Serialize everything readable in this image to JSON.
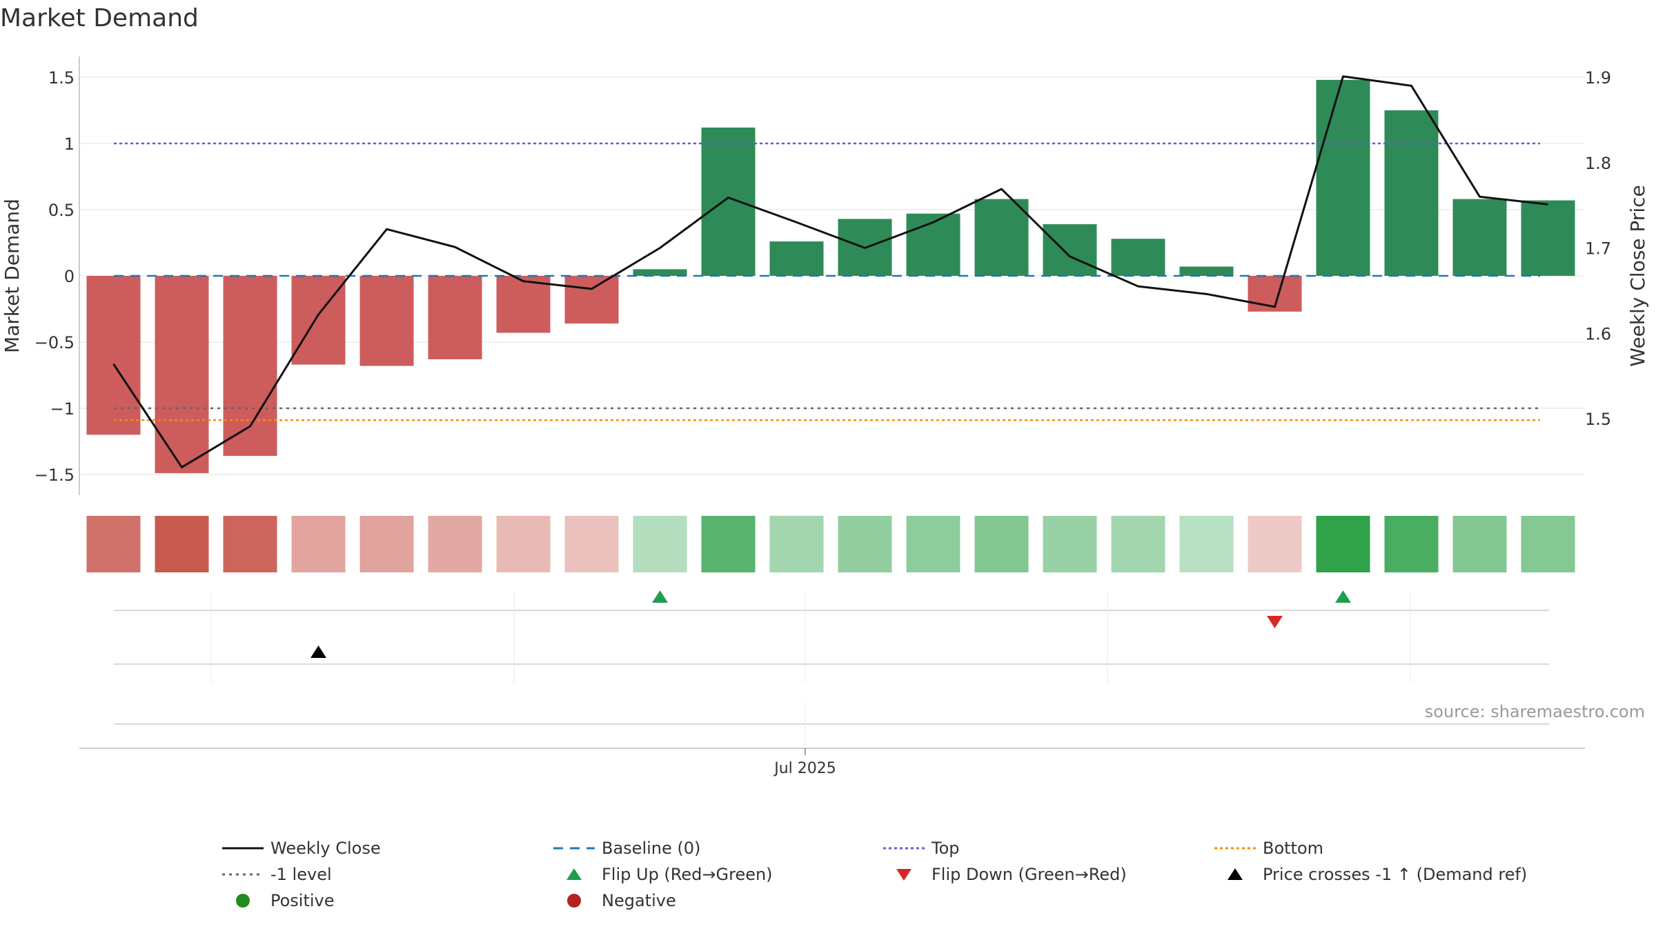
{
  "title": "Market Demand",
  "source": "source: sharemaestro.com",
  "colors": {
    "positive": "#2e8b57",
    "negative": "#cd5c5c",
    "price_line": "#111111",
    "baseline": "#1f77b4",
    "top": "#6a5acd",
    "bottom": "#ff8c00",
    "minus_one": "#666666",
    "flip_up": "#1e9e50",
    "flip_down": "#d62728",
    "cross": "#000000",
    "legend_positive": "#228b22",
    "legend_negative": "#b22222"
  },
  "chart_data": {
    "type": "bar",
    "ylabel": "Market Demand",
    "y2label": "Weekly Close Price",
    "ylim": [
      -1.65,
      1.65
    ],
    "y2lim": [
      1.4216,
      1.9216
    ],
    "yticks": [
      "1.5",
      "1",
      "0.5",
      "0",
      "−0.5",
      "−1",
      "−1.5"
    ],
    "ytick_values": [
      1.5,
      1,
      0.5,
      0,
      -0.5,
      -1,
      -1.5
    ],
    "y2ticks": [
      "1.9",
      "1.8",
      "1.7",
      "1.6",
      "1.5"
    ],
    "y2tick_values": [
      1.9,
      1.8,
      1.7,
      1.6,
      1.5
    ],
    "x_tick_label": "Jul 2025",
    "x_tick_index": 10.5,
    "demand": [
      -1.2,
      -1.49,
      -1.36,
      -0.67,
      -0.68,
      -0.63,
      -0.43,
      -0.36,
      0.05,
      1.12,
      0.26,
      0.43,
      0.47,
      0.58,
      0.39,
      0.28,
      0.07,
      -0.27,
      1.48,
      1.25,
      0.58,
      0.57
    ],
    "close": [
      1.564,
      1.443,
      1.491,
      1.622,
      1.722,
      1.701,
      1.661,
      1.652,
      1.7,
      1.759,
      1.73,
      1.7,
      1.73,
      1.769,
      1.69,
      1.655,
      1.646,
      1.631,
      1.901,
      1.89,
      1.76,
      1.751
    ],
    "heat_intensity": [
      0.82,
      1.0,
      0.91,
      0.45,
      0.46,
      0.42,
      0.29,
      0.24,
      0.22,
      0.76,
      0.32,
      0.42,
      0.45,
      0.51,
      0.38,
      0.32,
      0.2,
      0.18,
      1.0,
      0.84,
      0.51,
      0.5
    ],
    "reference_lines": {
      "baseline": 0,
      "top": 1.0,
      "bottom": -1.09,
      "minus_one": -1.0
    },
    "flip_up_indices": [
      8,
      18
    ],
    "flip_down_indices": [
      17
    ],
    "price_cross_indices": [
      3
    ]
  },
  "legend": [
    {
      "label": "Weekly Close",
      "symbol": "solid-line"
    },
    {
      "label": "Baseline (0)",
      "symbol": "dashed-line"
    },
    {
      "label": "Top",
      "symbol": "dotted-line-top"
    },
    {
      "label": "Bottom",
      "symbol": "dotted-line-bottom"
    },
    {
      "label": "-1 level",
      "symbol": "dotted-line-minus-one"
    },
    {
      "label": "Flip Up (Red→Green)",
      "symbol": "triangle-up-green"
    },
    {
      "label": "Flip Down (Green→Red)",
      "symbol": "triangle-down-red"
    },
    {
      "label": "Price crosses -1 ↑ (Demand ref)",
      "symbol": "triangle-up-black"
    },
    {
      "label": "Positive",
      "symbol": "circle-green"
    },
    {
      "label": "Negative",
      "symbol": "circle-red"
    }
  ]
}
